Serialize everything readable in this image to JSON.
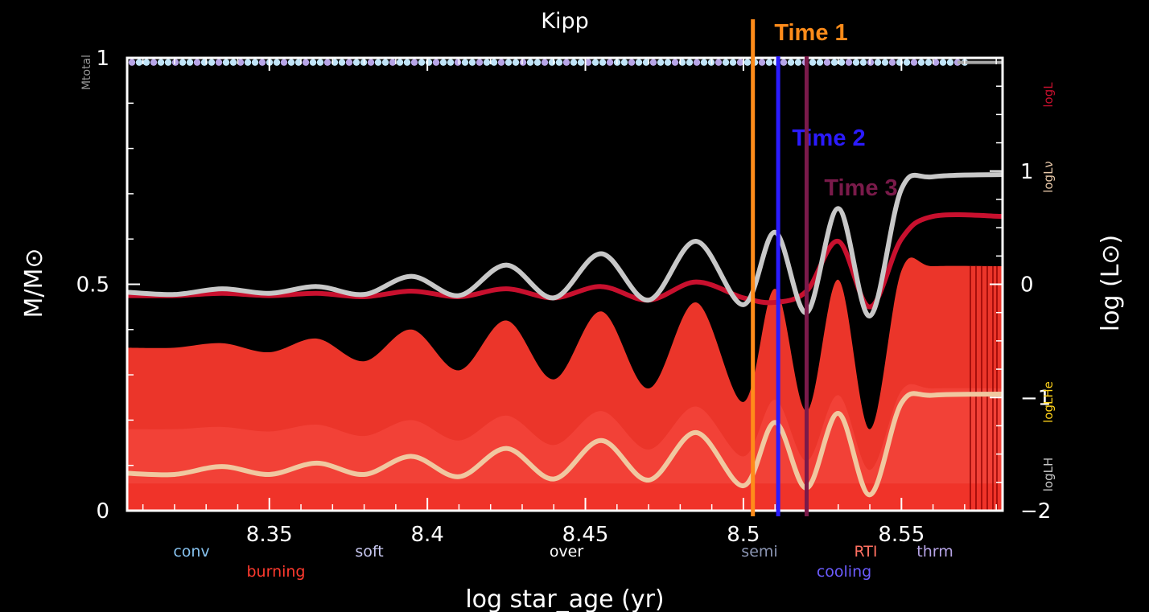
{
  "chart_data": {
    "type": "line",
    "title": "Kipp",
    "xlabel": "log star_age (yr)",
    "ylabel_left": "M/M⊙",
    "ylabel_right": "log (L⊙)",
    "xlim": [
      8.305,
      8.582
    ],
    "ylim_left": [
      0,
      1
    ],
    "ylim_right": [
      -2,
      2
    ],
    "x_ticks": [
      "8.35",
      "8.4",
      "8.45",
      "8.5",
      "8.55"
    ],
    "y_left_ticks": [
      "0",
      "0.5",
      "1"
    ],
    "y_right_ticks": [
      "−2",
      "−1",
      "0",
      "1"
    ],
    "left_top_label": "Mtotal",
    "right_series_labels": {
      "logL": "logL",
      "logLnu": "logLν",
      "logLHe": "logLHe",
      "logLH": "logLH"
    },
    "legend": {
      "placement": "bottom",
      "items": [
        {
          "label": "conv",
          "color": "#87c3f0"
        },
        {
          "label": "burning",
          "color": "#ff3a2e"
        },
        {
          "label": "soft",
          "color": "#c8c8f0"
        },
        {
          "label": "over",
          "color": "#ffffff"
        },
        {
          "label": "semi",
          "color": "#8c96b4"
        },
        {
          "label": "cooling",
          "color": "#6c5cff"
        },
        {
          "label": "RTI",
          "color": "#ff6f61"
        },
        {
          "label": "thrm",
          "color": "#b6a4e6"
        }
      ]
    },
    "series": [
      {
        "name": "logL",
        "axis": "right",
        "color": "#c8102e",
        "x": [
          8.305,
          8.32,
          8.335,
          8.35,
          8.365,
          8.38,
          8.395,
          8.41,
          8.425,
          8.44,
          8.455,
          8.47,
          8.485,
          8.5,
          8.51,
          8.52,
          8.53,
          8.54,
          8.55,
          8.56,
          8.582
        ],
        "y": [
          -0.1,
          -0.1,
          -0.08,
          -0.1,
          -0.08,
          -0.11,
          -0.06,
          -0.11,
          -0.04,
          -0.12,
          -0.02,
          -0.14,
          0.02,
          -0.12,
          -0.16,
          -0.06,
          0.38,
          -0.2,
          0.4,
          0.6,
          0.6
        ]
      },
      {
        "name": "logLν",
        "axis": "right",
        "color": "#c8c8c8",
        "x": [
          8.305,
          8.32,
          8.335,
          8.35,
          8.365,
          8.38,
          8.395,
          8.41,
          8.425,
          8.44,
          8.455,
          8.47,
          8.485,
          8.5,
          8.51,
          8.52,
          8.53,
          8.54,
          8.55,
          8.56,
          8.582
        ],
        "y": [
          -0.07,
          -0.09,
          -0.04,
          -0.08,
          -0.02,
          -0.09,
          0.07,
          -0.1,
          0.17,
          -0.12,
          0.27,
          -0.14,
          0.38,
          -0.18,
          0.46,
          -0.25,
          0.67,
          -0.28,
          0.84,
          0.95,
          0.97
        ]
      },
      {
        "name": "logLHe",
        "axis": "right",
        "color": "#f0c8a0",
        "x": [
          8.305,
          8.32,
          8.335,
          8.35,
          8.365,
          8.38,
          8.395,
          8.41,
          8.425,
          8.44,
          8.455,
          8.47,
          8.485,
          8.5,
          8.51,
          8.52,
          8.53,
          8.54,
          8.55,
          8.56,
          8.582
        ],
        "y": [
          -1.67,
          -1.68,
          -1.61,
          -1.68,
          -1.58,
          -1.68,
          -1.52,
          -1.7,
          -1.45,
          -1.72,
          -1.38,
          -1.73,
          -1.31,
          -1.78,
          -1.22,
          -1.8,
          -1.14,
          -1.86,
          -1.05,
          -0.98,
          -0.97
        ]
      },
      {
        "name": "conv_core_boundary",
        "axis": "left",
        "color": "#ff3a2e",
        "x": [
          8.305,
          8.32,
          8.335,
          8.35,
          8.365,
          8.38,
          8.395,
          8.41,
          8.425,
          8.44,
          8.455,
          8.47,
          8.485,
          8.5,
          8.51,
          8.52,
          8.53,
          8.54,
          8.55,
          8.56,
          8.582
        ],
        "y": [
          0.36,
          0.36,
          0.37,
          0.35,
          0.38,
          0.33,
          0.4,
          0.31,
          0.42,
          0.29,
          0.44,
          0.27,
          0.46,
          0.24,
          0.49,
          0.22,
          0.51,
          0.18,
          0.53,
          0.54,
          0.54
        ]
      }
    ],
    "markers": [
      {
        "label": "Time 1",
        "x": 8.503,
        "color": "#ff8c1a"
      },
      {
        "label": "Time 2",
        "x": 8.511,
        "color": "#2b1bff"
      },
      {
        "label": "Time 3",
        "x": 8.52,
        "color": "#7a1a4a"
      }
    ],
    "grid": false
  }
}
